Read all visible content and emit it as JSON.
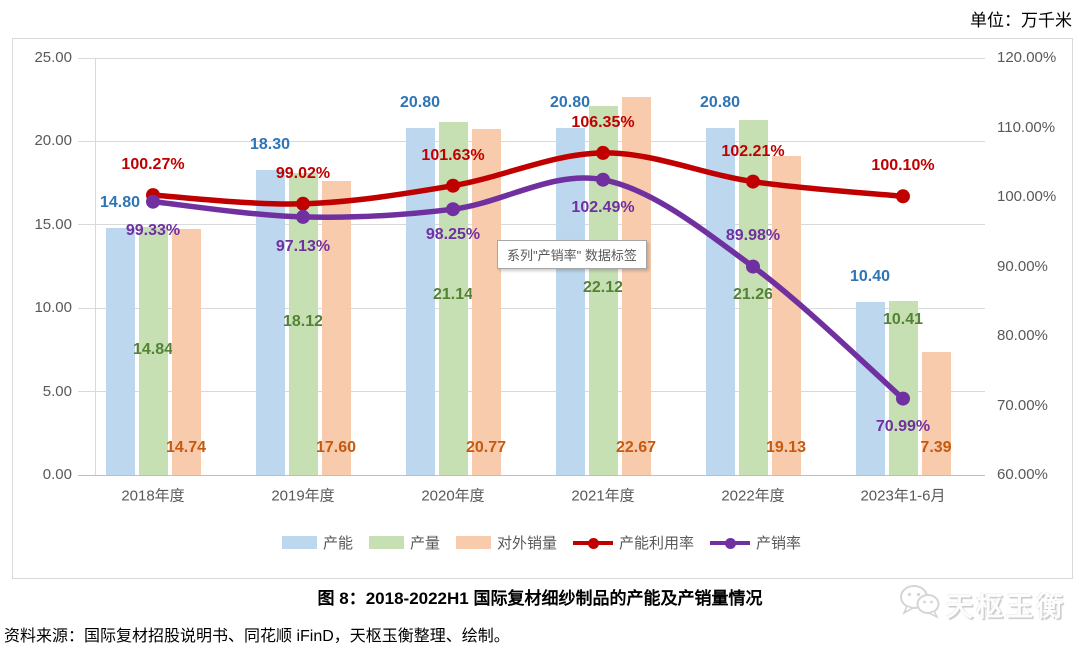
{
  "unit_label": "单位：万千米",
  "figure_title": "图 8：2018-2022H1 国际复材细纱制品的产能及产销量情况",
  "source_note": "资料来源：国际复材招股说明书、同花顺 iFinD，天枢玉衡整理、绘制。",
  "watermark_text": "天枢玉衡",
  "tooltip_text": "系列\"产销率\" 数据标签",
  "chart_data": {
    "type": "combo bar+line",
    "categories": [
      "2018年度",
      "2019年度",
      "2020年度",
      "2021年度",
      "2022年度",
      "2023年1-6月"
    ],
    "bar_series": [
      {
        "name": "产能",
        "color": "#BDD7EE",
        "label_color": "#2E75B6",
        "values": [
          14.8,
          18.3,
          20.8,
          20.8,
          20.8,
          10.4
        ],
        "labels": [
          "14.80",
          "18.30",
          "20.80",
          "20.80",
          "20.80",
          "10.40"
        ]
      },
      {
        "name": "产量",
        "color": "#C6E0B4",
        "label_color": "#548235",
        "values": [
          14.84,
          18.12,
          21.14,
          22.12,
          21.26,
          10.41
        ],
        "labels": [
          "14.84",
          "18.12",
          "21.14",
          "22.12",
          "21.26",
          "10.41"
        ]
      },
      {
        "name": "对外销量",
        "color": "#F8CBAD",
        "label_color": "#C55A11",
        "values": [
          14.74,
          17.6,
          20.77,
          22.67,
          19.13,
          7.39
        ],
        "labels": [
          "14.74",
          "17.60",
          "20.77",
          "22.67",
          "19.13",
          "7.39"
        ]
      }
    ],
    "line_series": [
      {
        "name": "产能利用率",
        "color": "#C00000",
        "axis": "right",
        "values": [
          100.27,
          99.02,
          101.63,
          106.35,
          102.21,
          100.1
        ],
        "labels": [
          "100.27%",
          "99.02%",
          "101.63%",
          "106.35%",
          "102.21%",
          "100.10%"
        ]
      },
      {
        "name": "产销率",
        "color": "#7030A0",
        "axis": "right",
        "values": [
          99.33,
          97.13,
          98.25,
          102.49,
          89.98,
          70.99
        ],
        "labels": [
          "99.33%",
          "97.13%",
          "98.25%",
          "102.49%",
          "89.98%",
          "70.99%"
        ]
      }
    ],
    "left_axis": {
      "min": 0,
      "max": 25,
      "ticks": [
        "25.00",
        "20.00",
        "15.00",
        "10.00",
        "5.00",
        "0.00"
      ]
    },
    "right_axis": {
      "min": 60,
      "max": 120,
      "ticks": [
        "120.00%",
        "110.00%",
        "100.00%",
        "90.00%",
        "80.00%",
        "70.00%",
        "60.00%"
      ]
    },
    "legend": [
      "产能",
      "产量",
      "对外销量",
      "产能利用率",
      "产销率"
    ],
    "legend_position": "bottom",
    "grid": true
  }
}
